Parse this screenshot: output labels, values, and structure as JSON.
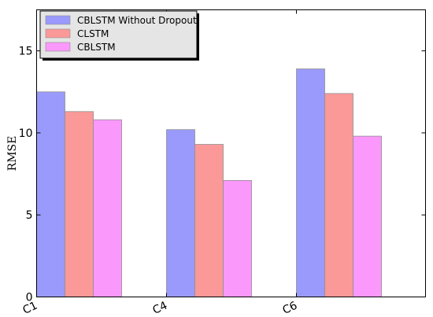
{
  "chart_data": {
    "type": "bar",
    "categories": [
      "C1",
      "C4",
      "C6"
    ],
    "series": [
      {
        "name": "CBLSTM Without Dropout",
        "values": [
          12.5,
          10.2,
          13.9
        ],
        "color": "#9a9afc"
      },
      {
        "name": "CLSTM",
        "values": [
          11.3,
          9.3,
          12.4
        ],
        "color": "#fb9898"
      },
      {
        "name": "CBLSTM",
        "values": [
          10.8,
          7.1,
          9.8
        ],
        "color": "#fb98fb"
      }
    ],
    "title": "",
    "xlabel": "",
    "ylabel": "RMSE",
    "ylim": [
      0,
      17.5
    ],
    "yticks": [
      0,
      5,
      10,
      15
    ],
    "grid": false,
    "legend": "top-left",
    "legend_background": "#e5e5e5"
  }
}
